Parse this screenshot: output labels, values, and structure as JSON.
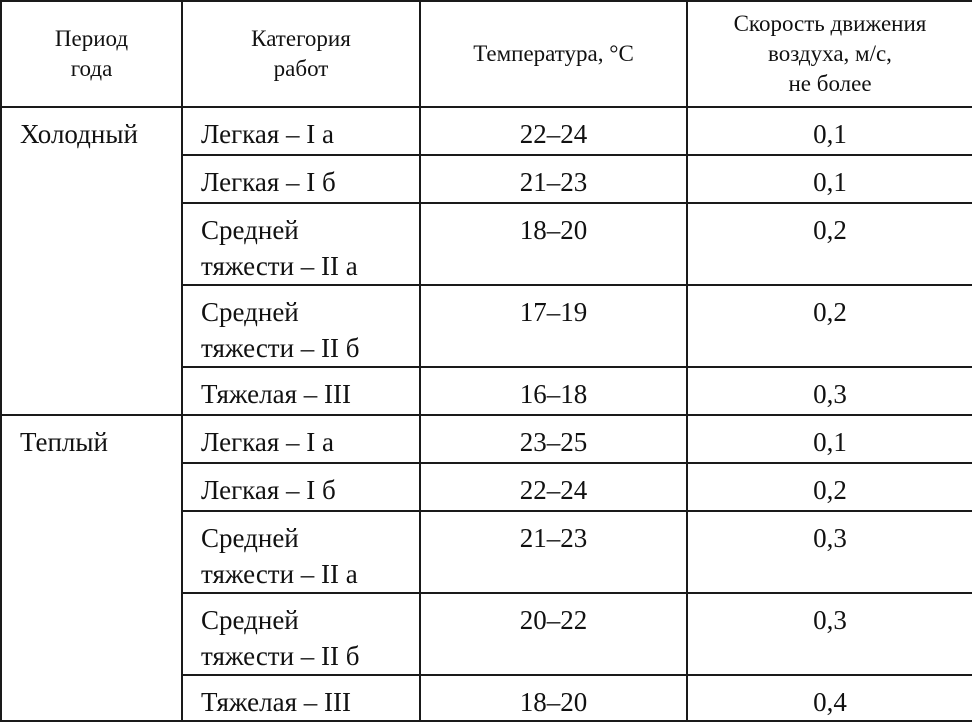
{
  "header": {
    "period_lines": [
      "Период",
      "года"
    ],
    "category_lines": [
      "Категория",
      "работ"
    ],
    "temperature_lines": [
      "Температура, °С"
    ],
    "speed_lines": [
      "Скорость движения",
      "воздуха, м/с,",
      "не более"
    ]
  },
  "groups": [
    {
      "period": "Холодный",
      "rows": [
        {
          "category_lines": [
            "Легкая – I а"
          ],
          "temperature": "22–24",
          "speed": "0,1"
        },
        {
          "category_lines": [
            "Легкая – I б"
          ],
          "temperature": "21–23",
          "speed": "0,1"
        },
        {
          "category_lines": [
            "Средней",
            "тяжести – II а"
          ],
          "temperature": "18–20",
          "speed": "0,2"
        },
        {
          "category_lines": [
            "Средней",
            "тяжести – II б"
          ],
          "temperature": "17–19",
          "speed": "0,2"
        },
        {
          "category_lines": [
            "Тяжелая – III"
          ],
          "temperature": "16–18",
          "speed": "0,3"
        }
      ]
    },
    {
      "period": "Теплый",
      "rows": [
        {
          "category_lines": [
            "Легкая – I а"
          ],
          "temperature": "23–25",
          "speed": "0,1"
        },
        {
          "category_lines": [
            "Легкая – I б"
          ],
          "temperature": "22–24",
          "speed": "0,2"
        },
        {
          "category_lines": [
            "Средней",
            "тяжести – II а"
          ],
          "temperature": "21–23",
          "speed": "0,3"
        },
        {
          "category_lines": [
            "Средней",
            "тяжести – II б"
          ],
          "temperature": "20–22",
          "speed": "0,3"
        },
        {
          "category_lines": [
            "Тяжелая – III"
          ],
          "temperature": "18–20",
          "speed": "0,4"
        }
      ]
    }
  ]
}
